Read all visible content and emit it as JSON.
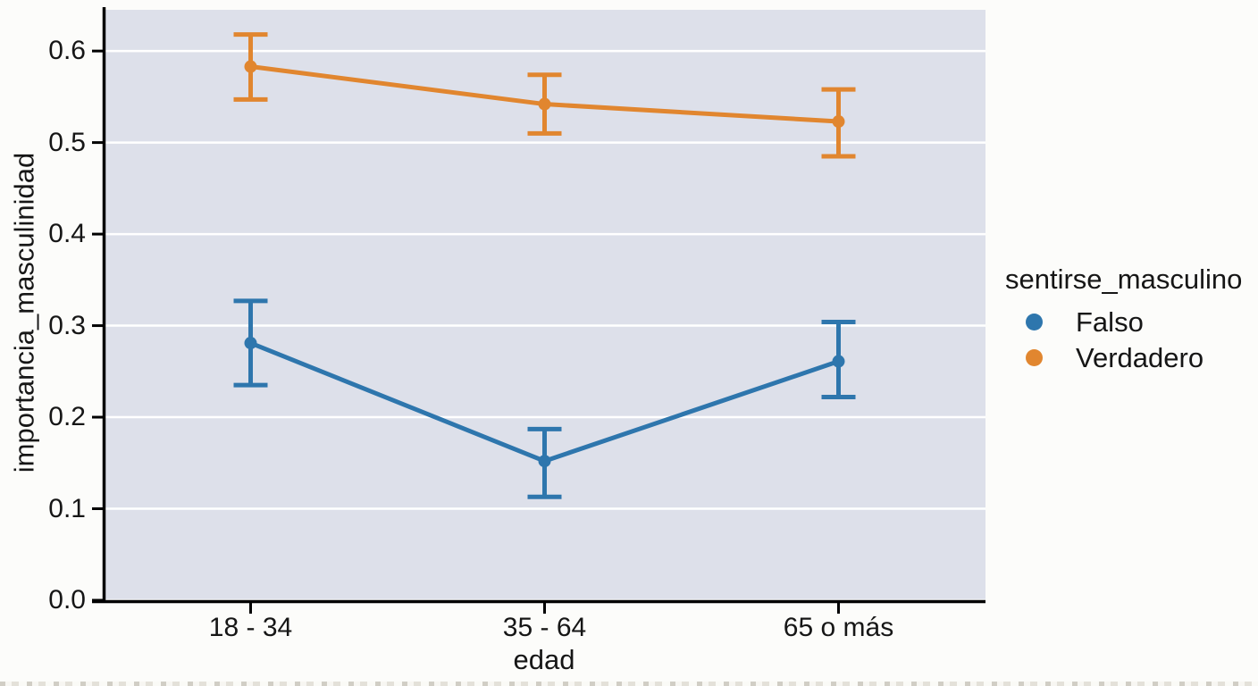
{
  "chart_data": {
    "type": "line",
    "subtype": "pointplot-with-error-bars",
    "title": "",
    "xlabel": "edad",
    "ylabel": "importancia_masculinidad",
    "categories": [
      "18 - 34",
      "35 - 64",
      "65 o más"
    ],
    "series": [
      {
        "name": "Falso",
        "color": "#2e76ad",
        "values": [
          0.281,
          0.152,
          0.261
        ],
        "ci_low": [
          0.235,
          0.113,
          0.222
        ],
        "ci_high": [
          0.327,
          0.187,
          0.304
        ]
      },
      {
        "name": "Verdadero",
        "color": "#e1862f",
        "values": [
          0.583,
          0.542,
          0.523
        ],
        "ci_low": [
          0.547,
          0.51,
          0.485
        ],
        "ci_high": [
          0.618,
          0.574,
          0.558
        ]
      }
    ],
    "legend": {
      "title": "sentirse_masculino",
      "position": "right-outside"
    },
    "ylim": [
      0.0,
      0.645
    ],
    "y_ticks": [
      0.0,
      0.1,
      0.2,
      0.3,
      0.4,
      0.5,
      0.6
    ],
    "grid": true,
    "plot_bg": "#dde0ea",
    "grid_color": "#ffffff",
    "axis_color": "#000000",
    "text_color": "#161616"
  }
}
